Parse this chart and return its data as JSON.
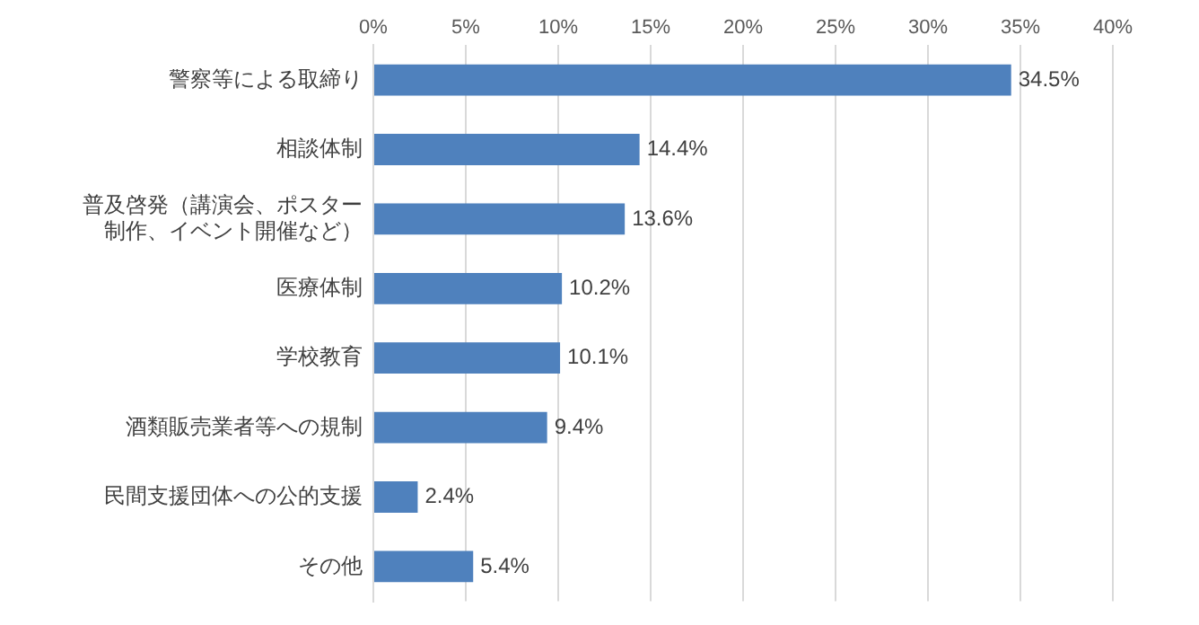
{
  "chart_data": {
    "type": "bar",
    "orientation": "horizontal",
    "categories": [
      "警察等による取締り",
      "相談体制",
      "普及啓発（講演会、ポスター制作、イベント開催など）",
      "医療体制",
      "学校教育",
      "酒類販売業者等への規制",
      "民間支援団体への公的支援",
      "その他"
    ],
    "values": [
      34.5,
      14.4,
      13.6,
      10.2,
      10.1,
      9.4,
      2.4,
      5.4
    ],
    "value_labels": [
      "34.5%",
      "14.4%",
      "13.6%",
      "10.2%",
      "10.1%",
      "9.4%",
      "2.4%",
      "5.4%"
    ],
    "color": "#4f81bd",
    "xlim": [
      0,
      40
    ],
    "xticks": [
      {
        "value": 0,
        "label": "0%"
      },
      {
        "value": 5,
        "label": "5%"
      },
      {
        "value": 10,
        "label": "10%"
      },
      {
        "value": 15,
        "label": "15%"
      },
      {
        "value": 20,
        "label": "20%"
      },
      {
        "value": 25,
        "label": "25%"
      },
      {
        "value": 30,
        "label": "30%"
      },
      {
        "value": 35,
        "label": "35%"
      },
      {
        "value": 40,
        "label": "40%"
      }
    ],
    "grid": "x",
    "legend": false
  }
}
